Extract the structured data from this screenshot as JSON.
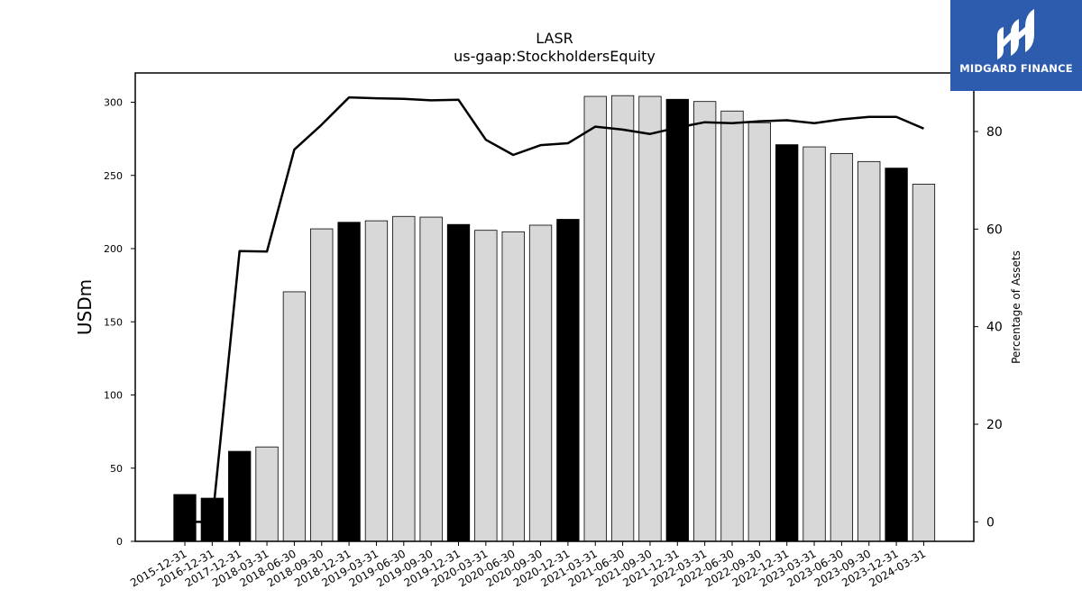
{
  "chart_data": {
    "type": "bar",
    "title": "LASR",
    "subtitle": "us-gaap:StockholdersEquity",
    "ylabel": "USDm",
    "y2label": "Percentage of Assets",
    "ylim": [
      0,
      320
    ],
    "y2lim": [
      -4,
      92
    ],
    "yticks": [
      0,
      50,
      100,
      150,
      200,
      250,
      300
    ],
    "y2ticks": [
      0,
      20,
      40,
      60,
      80
    ],
    "categories": [
      "2015-12-31",
      "2016-12-31",
      "2017-12-31",
      "2018-03-31",
      "2018-06-30",
      "2018-09-30",
      "2018-12-31",
      "2019-03-31",
      "2019-06-30",
      "2019-09-30",
      "2019-12-31",
      "2020-03-31",
      "2020-06-30",
      "2020-09-30",
      "2020-12-31",
      "2021-03-31",
      "2021-06-30",
      "2021-09-30",
      "2021-12-31",
      "2022-03-31",
      "2022-06-30",
      "2022-09-30",
      "2022-12-31",
      "2023-03-31",
      "2023-06-30",
      "2023-09-30",
      "2023-12-31",
      "2024-03-31"
    ],
    "series": [
      {
        "type": "bar",
        "values": [
          32,
          29.5,
          61.5,
          64.5,
          170.5,
          213.5,
          218,
          219,
          222,
          221.5,
          216.5,
          212.5,
          211.5,
          216,
          220,
          304,
          304.5,
          304,
          302,
          300.5,
          294,
          286,
          271,
          269.5,
          265,
          259.5,
          255,
          244
        ],
        "annual": [
          true,
          true,
          true,
          false,
          false,
          false,
          true,
          false,
          false,
          false,
          true,
          false,
          false,
          false,
          true,
          false,
          false,
          false,
          true,
          false,
          false,
          false,
          true,
          false,
          false,
          false,
          true,
          false
        ],
        "colors": {
          "annual": "#000000",
          "quarterly": "#d8d8d8",
          "edge": "#000000"
        }
      },
      {
        "type": "line",
        "axis": "right",
        "values": [
          0,
          0,
          55.5,
          55.4,
          76.3,
          81.4,
          87,
          86.8,
          86.7,
          86.4,
          86.5,
          78.3,
          75.2,
          77.2,
          77.6,
          81,
          80.4,
          79.5,
          80.8,
          81.9,
          81.7,
          82.1,
          82.3,
          81.7,
          82.5,
          83,
          83,
          80.6
        ],
        "color": "#000000"
      }
    ]
  },
  "logo": {
    "text": "MIDGARD FINANCE",
    "bg": "#2d5cae"
  }
}
